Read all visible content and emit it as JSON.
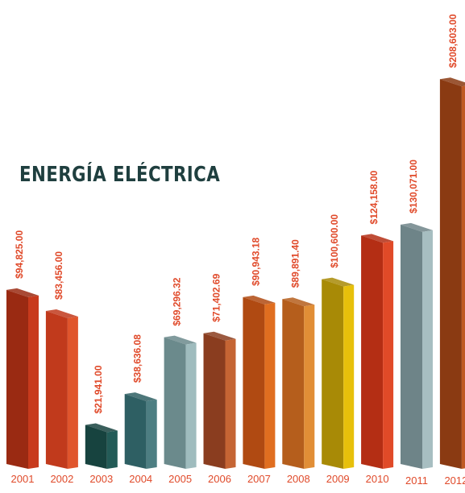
{
  "chart_data": {
    "type": "bar",
    "title": "ENERGÍA ELÉCTRICA",
    "xlabel": "",
    "ylabel": "",
    "ylim": [
      0,
      210000
    ],
    "categories": [
      "2001",
      "2002",
      "2003",
      "2004",
      "2005",
      "2006",
      "2007",
      "2008",
      "2009",
      "2010",
      "2011",
      "2012"
    ],
    "values": [
      94825.0,
      83456.0,
      21941.0,
      38636.08,
      69296.32,
      71402.69,
      90943.18,
      89891.4,
      100600.0,
      124158.0,
      130071.0,
      208603.0
    ],
    "data_labels": [
      "$94,825.00",
      "$83,456.00",
      "$21,941.00",
      "$38,636.08",
      "$69,296.32",
      "$71,402.69",
      "$90,943.18",
      "$89,891.40",
      "$100,600.00",
      "$124,158.00",
      "$130,071.00",
      "$208,603.00"
    ],
    "colors": [
      "#9a2a12",
      "#c13a1c",
      "#17433f",
      "#2e5f63",
      "#6b8a8c",
      "#8a3d1f",
      "#b04a12",
      "#b55e1c",
      "#a88a06",
      "#b42e14",
      "#6e8488",
      "#8a3a12"
    ],
    "side_colors": [
      "#c83a1c",
      "#e0552c",
      "#235b57",
      "#4d7e82",
      "#9fbcbe",
      "#c56534",
      "#e06e20",
      "#e18e36",
      "#e7c00b",
      "#e04a28",
      "#a7bec1",
      "#bf5a24"
    ],
    "label_color": "#e04a2a",
    "grid": false,
    "legend": "none"
  }
}
